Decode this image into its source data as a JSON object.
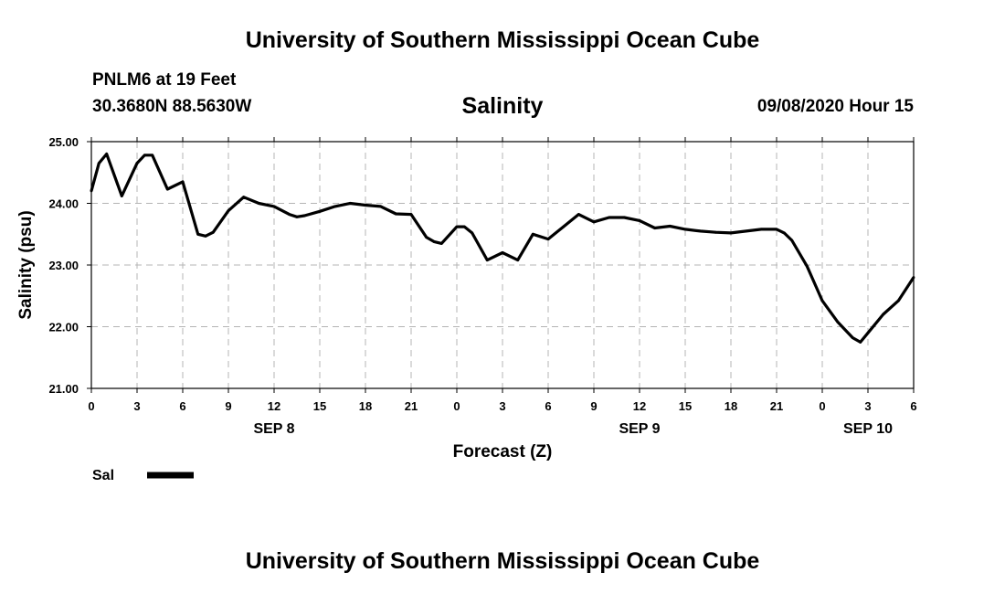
{
  "header": {
    "title": "University of Southern Mississippi Ocean Cube",
    "station": "PNLM6 at 19 Feet",
    "coords": "30.3680N 88.5630W",
    "variable": "Salinity",
    "datetime": "09/08/2020 Hour 15"
  },
  "footer": {
    "title": "University of Southern Mississippi Ocean Cube"
  },
  "chart_data": {
    "type": "line",
    "title": "Salinity",
    "xlabel": "Forecast (Z)",
    "ylabel": "Salinity (psu)",
    "ylim": [
      21.0,
      25.0
    ],
    "xlim": [
      0,
      54
    ],
    "grid": true,
    "yticks": [
      {
        "value": 21.0,
        "label": "21.00"
      },
      {
        "value": 22.0,
        "label": "22.00"
      },
      {
        "value": 23.0,
        "label": "23.00"
      },
      {
        "value": 24.0,
        "label": "24.00"
      },
      {
        "value": 25.0,
        "label": "25.00"
      }
    ],
    "xticks": [
      {
        "hour": 0,
        "label": "0"
      },
      {
        "hour": 3,
        "label": "3"
      },
      {
        "hour": 6,
        "label": "6"
      },
      {
        "hour": 9,
        "label": "9"
      },
      {
        "hour": 12,
        "label": "12"
      },
      {
        "hour": 15,
        "label": "15"
      },
      {
        "hour": 18,
        "label": "18"
      },
      {
        "hour": 21,
        "label": "21"
      },
      {
        "hour": 24,
        "label": "0"
      },
      {
        "hour": 27,
        "label": "3"
      },
      {
        "hour": 30,
        "label": "6"
      },
      {
        "hour": 33,
        "label": "9"
      },
      {
        "hour": 36,
        "label": "12"
      },
      {
        "hour": 39,
        "label": "15"
      },
      {
        "hour": 42,
        "label": "18"
      },
      {
        "hour": 45,
        "label": "21"
      },
      {
        "hour": 48,
        "label": "0"
      },
      {
        "hour": 51,
        "label": "3"
      },
      {
        "hour": 54,
        "label": "6"
      }
    ],
    "day_labels": [
      {
        "hour": 12,
        "label": "SEP 8"
      },
      {
        "hour": 36,
        "label": "SEP 9"
      },
      {
        "hour": 51,
        "label": "SEP 10"
      }
    ],
    "legend": {
      "label": "Sal",
      "position": "bottom-left"
    },
    "series": [
      {
        "name": "Sal",
        "x": [
          0,
          0.5,
          1,
          2,
          3,
          3.5,
          4,
          5,
          6,
          7,
          7.5,
          8,
          9,
          10,
          11,
          12,
          13,
          13.5,
          14,
          15,
          16,
          17,
          18,
          19,
          20,
          21,
          22,
          22.5,
          23,
          24,
          24.5,
          25,
          26,
          27,
          28,
          29,
          30,
          31,
          32,
          33,
          34,
          35,
          36,
          37,
          38,
          39,
          40,
          41,
          42,
          43,
          44,
          45,
          45.5,
          46,
          47,
          48,
          49,
          50,
          50.5,
          51,
          52,
          53,
          54
        ],
        "values": [
          24.2,
          24.65,
          24.8,
          24.12,
          24.65,
          24.78,
          24.78,
          24.23,
          24.35,
          23.5,
          23.47,
          23.53,
          23.88,
          24.1,
          24.0,
          23.95,
          23.82,
          23.78,
          23.8,
          23.87,
          23.95,
          24.0,
          23.97,
          23.95,
          23.83,
          23.82,
          23.45,
          23.38,
          23.35,
          23.62,
          23.62,
          23.52,
          23.08,
          23.2,
          23.08,
          23.5,
          23.42,
          23.62,
          23.82,
          23.7,
          23.77,
          23.77,
          23.72,
          23.6,
          23.63,
          23.58,
          23.55,
          23.53,
          23.52,
          23.55,
          23.58,
          23.58,
          23.52,
          23.4,
          22.98,
          22.42,
          22.08,
          21.82,
          21.75,
          21.9,
          22.2,
          22.42,
          22.8
        ]
      }
    ]
  }
}
